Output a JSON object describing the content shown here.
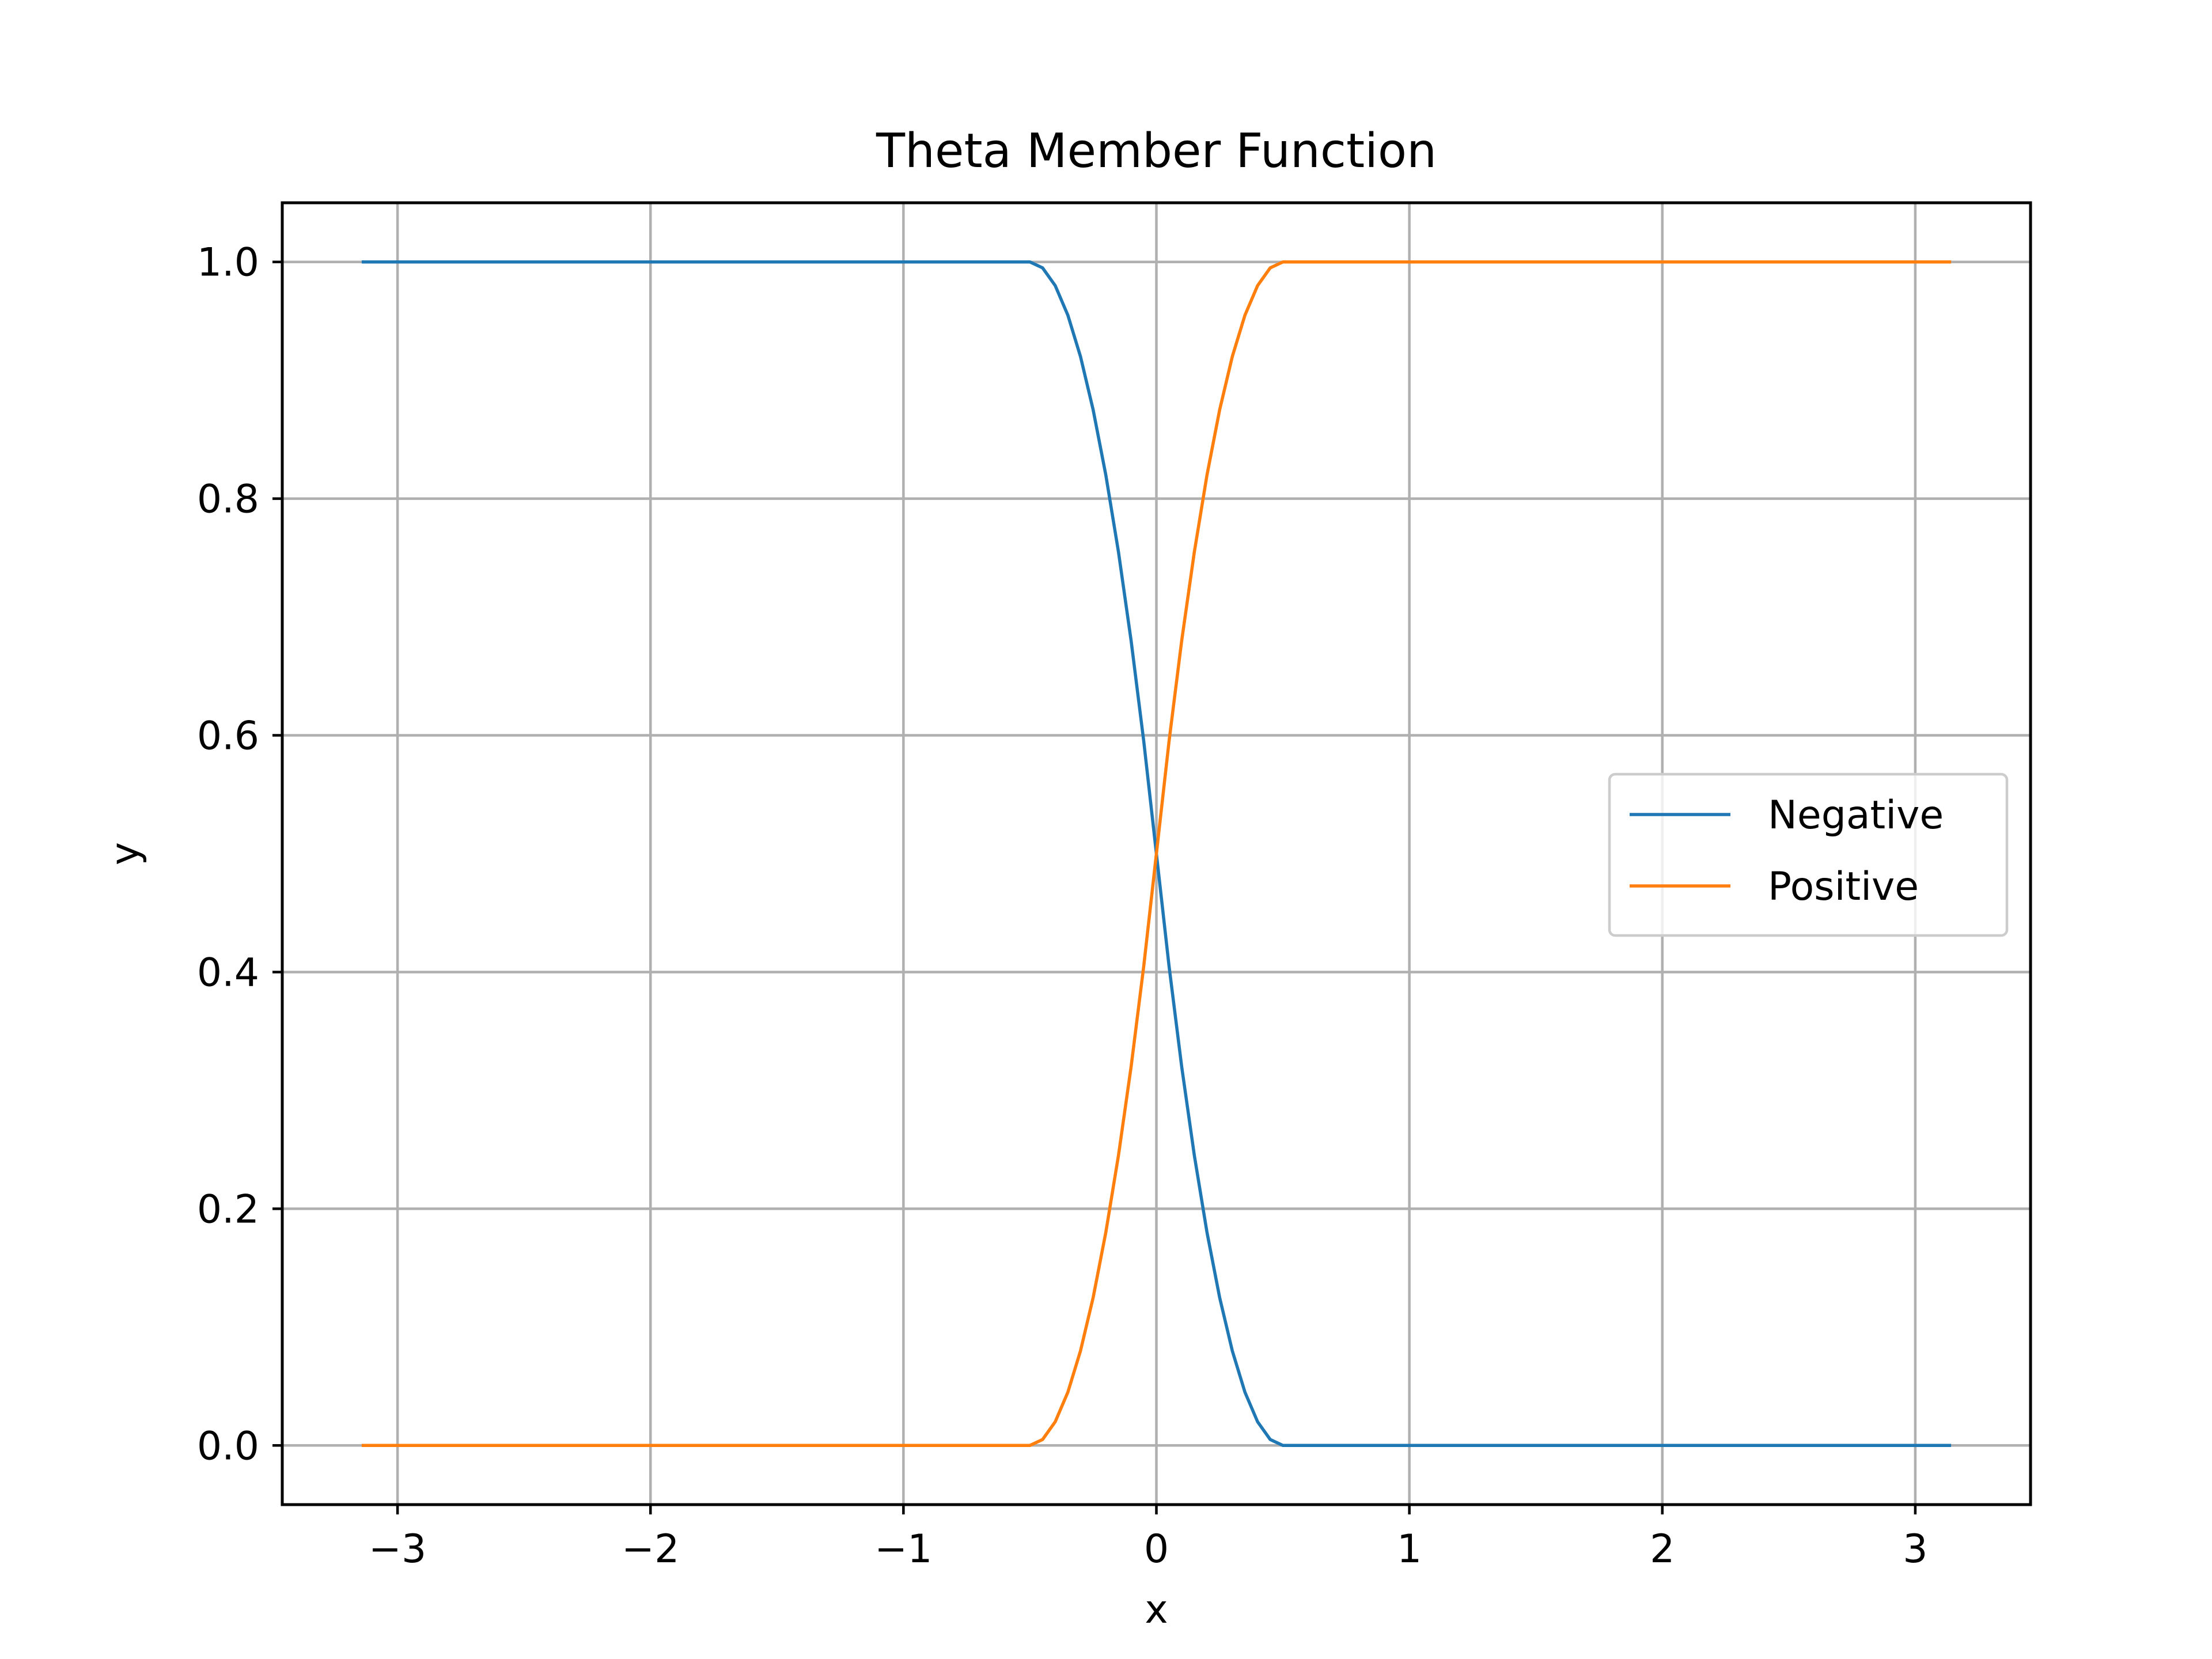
{
  "chart_data": {
    "type": "line",
    "title": "Theta Member Function",
    "xlabel": "x",
    "ylabel": "y",
    "xlim": [
      -3.4557,
      3.4557
    ],
    "ylim": [
      -0.05,
      1.05
    ],
    "xticks": [
      -3,
      -2,
      -1,
      0,
      1,
      2,
      3
    ],
    "xtick_labels": [
      "−3",
      "−2",
      "−1",
      "0",
      "1",
      "2",
      "3"
    ],
    "yticks": [
      0.0,
      0.2,
      0.4,
      0.6,
      0.8,
      1.0
    ],
    "ytick_labels": [
      "0.0",
      "0.2",
      "0.4",
      "0.6",
      "0.8",
      "1.0"
    ],
    "grid": true,
    "legend_position": "center-right",
    "series": [
      {
        "name": "Negative",
        "color": "#1f77b4",
        "x": [
          -3.1416,
          -0.5,
          -0.45,
          -0.4,
          -0.35,
          -0.3,
          -0.25,
          -0.2,
          -0.15,
          -0.1,
          -0.05,
          0.0,
          0.05,
          0.1,
          0.15,
          0.2,
          0.25,
          0.3,
          0.35,
          0.4,
          0.45,
          0.5,
          3.1416
        ],
        "y": [
          1.0,
          1.0,
          0.995,
          0.98,
          0.955,
          0.92,
          0.875,
          0.82,
          0.755,
          0.68,
          0.595,
          0.5,
          0.405,
          0.32,
          0.245,
          0.18,
          0.125,
          0.08,
          0.045,
          0.02,
          0.005,
          0.0,
          0.0
        ]
      },
      {
        "name": "Positive",
        "color": "#ff7f0e",
        "x": [
          -3.1416,
          -0.5,
          -0.45,
          -0.4,
          -0.35,
          -0.3,
          -0.25,
          -0.2,
          -0.15,
          -0.1,
          -0.05,
          0.0,
          0.05,
          0.1,
          0.15,
          0.2,
          0.25,
          0.3,
          0.35,
          0.4,
          0.45,
          0.5,
          3.1416
        ],
        "y": [
          0.0,
          0.0,
          0.005,
          0.02,
          0.045,
          0.08,
          0.125,
          0.18,
          0.245,
          0.32,
          0.405,
          0.5,
          0.595,
          0.68,
          0.755,
          0.82,
          0.875,
          0.92,
          0.955,
          0.98,
          0.995,
          1.0,
          1.0
        ]
      }
    ]
  }
}
